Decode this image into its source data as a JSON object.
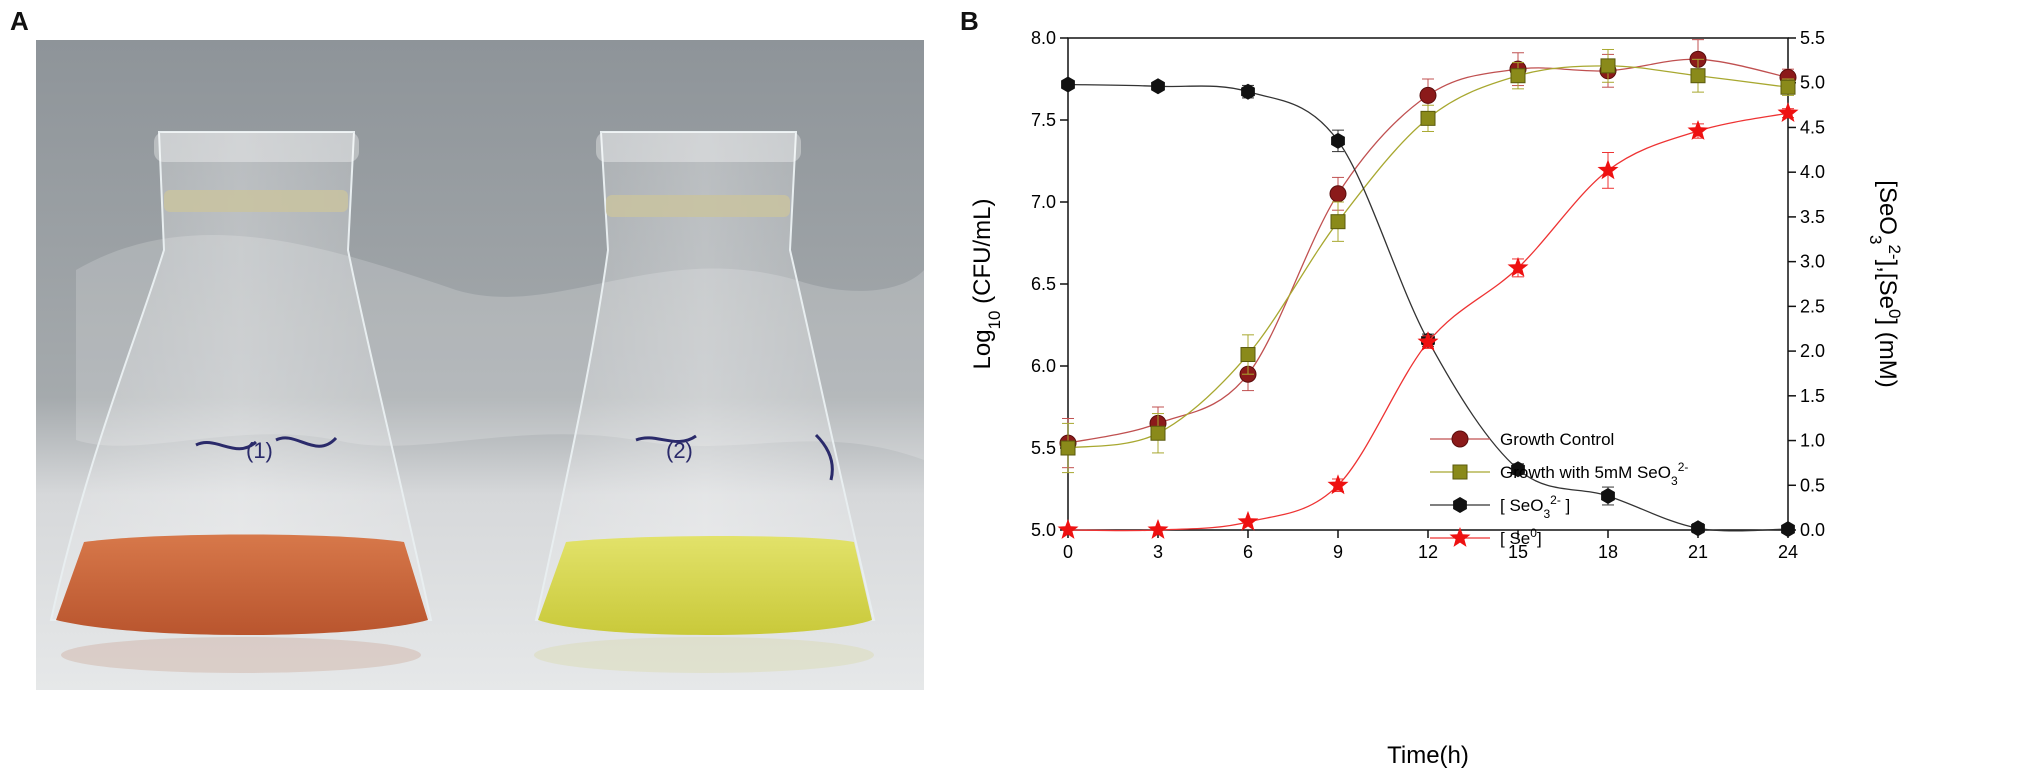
{
  "panels": {
    "a_label": "A",
    "b_label": "B"
  },
  "photo": {
    "description_icon": "two-flasks-photo-icon",
    "flask_left_note": "(1)",
    "flask_right_note": "(2)",
    "colors": {
      "left_liquid": "#c9663a",
      "right_liquid": "#d8d84a",
      "background": "#8f959a",
      "bench": "#d8dadc"
    }
  },
  "chart_data": {
    "type": "line",
    "x": [
      0,
      3,
      6,
      9,
      12,
      15,
      18,
      21,
      24
    ],
    "xlabel": "Time(h)",
    "xlim": [
      0,
      24
    ],
    "xticks": [
      0,
      3,
      6,
      9,
      12,
      15,
      18,
      21,
      24
    ],
    "ylabel_left": {
      "main": "Log",
      "sub": "10",
      "rest": " (CFU/mL)"
    },
    "ylim_left": [
      5.0,
      8.0
    ],
    "yticks_left": [
      "5.0",
      "5.5",
      "6.0",
      "6.5",
      "7.0",
      "7.5",
      "8.0"
    ],
    "ylabel_right": {
      "p1": "[SeO",
      "p2": "3",
      "p3": "2-",
      "p4": "],[Se",
      "p5": "0",
      "p6": "] (mM)"
    },
    "ylim_right": [
      0.0,
      5.5
    ],
    "yticks_right": [
      "0.0",
      "0.5",
      "1.0",
      "1.5",
      "2.0",
      "2.5",
      "3.0",
      "3.5",
      "4.0",
      "4.5",
      "5.0",
      "5.5"
    ],
    "legend_position": "center-right",
    "series": [
      {
        "name": "Growth Control",
        "axis": "left",
        "marker": "circle",
        "color": "#8b1a1a",
        "line": "#c05050",
        "values": [
          5.53,
          5.65,
          5.95,
          7.05,
          7.65,
          7.81,
          7.8,
          7.87,
          7.76
        ],
        "errors": [
          0.15,
          0.1,
          0.1,
          0.1,
          0.1,
          0.1,
          0.1,
          0.12,
          0.05
        ]
      },
      {
        "name": "Growth with 5mM SeO3 2-",
        "legend_main": "Growth with 5mM SeO",
        "legend_sub": "3",
        "legend_sup": "2-",
        "axis": "left",
        "marker": "square",
        "color": "#8a8a1a",
        "line": "#a8a830",
        "values": [
          5.5,
          5.59,
          6.07,
          6.88,
          7.51,
          7.77,
          7.83,
          7.77,
          7.7
        ],
        "errors": [
          0.15,
          0.12,
          0.12,
          0.12,
          0.08,
          0.08,
          0.1,
          0.1,
          0.05
        ]
      },
      {
        "name": "[SeO3 2-]",
        "legend_main": "[ SeO",
        "legend_sub": "3",
        "legend_sup": "2-",
        "legend_end": " ]",
        "axis": "right",
        "marker": "hexagon",
        "color": "#111111",
        "line": "#333333",
        "values": [
          4.98,
          4.96,
          4.9,
          4.35,
          2.12,
          0.68,
          0.38,
          0.02,
          0.01
        ],
        "errors": [
          0.0,
          0.0,
          0.07,
          0.12,
          0.07,
          0.06,
          0.1,
          0.05,
          0.0
        ]
      },
      {
        "name": "[Se0]",
        "legend_main": "[ Se",
        "legend_sup": "0",
        "legend_end": "]",
        "axis": "right",
        "marker": "star",
        "color": "#ee1111",
        "line": "#ee3333",
        "values": [
          0.0,
          0.0,
          0.09,
          0.5,
          2.1,
          2.93,
          4.02,
          4.46,
          4.66
        ],
        "errors": [
          0.0,
          0.0,
          0.0,
          0.07,
          0.07,
          0.1,
          0.2,
          0.08,
          0.05
        ]
      }
    ]
  }
}
